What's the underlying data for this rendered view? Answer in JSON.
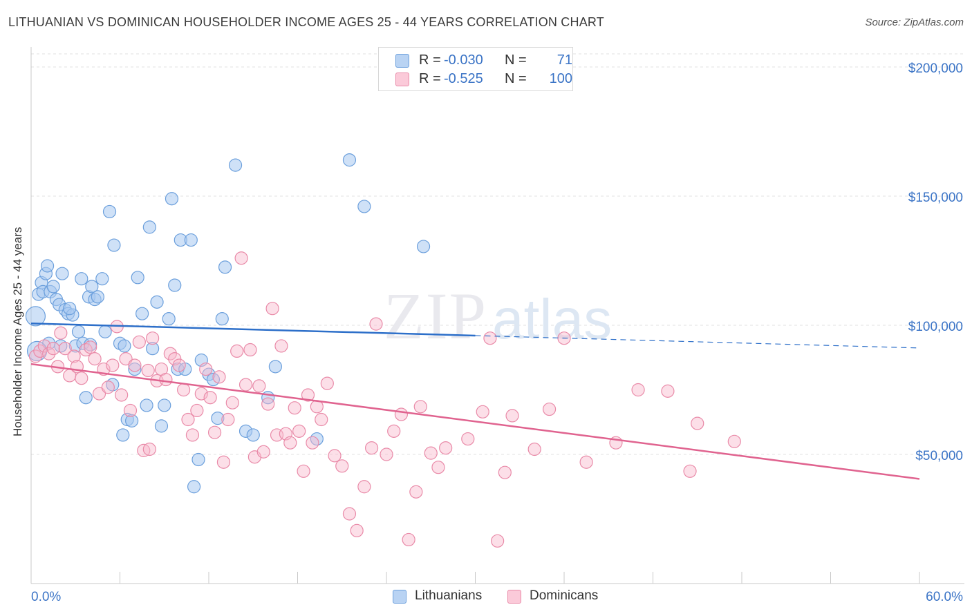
{
  "header": {
    "title": "LITHUANIAN VS DOMINICAN HOUSEHOLDER INCOME AGES 25 - 44 YEARS CORRELATION CHART",
    "source": "Source: ZipAtlas.com"
  },
  "watermark": {
    "zip": "ZIP",
    "atlas": "atlas"
  },
  "legend": {
    "rows": [
      {
        "r_label": "R =",
        "r_value": "-0.030",
        "n_label": "N =",
        "n_value": "71",
        "color": "#a8c8f0"
      },
      {
        "r_label": "R =",
        "r_value": "-0.525",
        "n_label": "N =",
        "n_value": "100",
        "color": "#f8b8cc"
      }
    ]
  },
  "bottom_legend": {
    "items": [
      {
        "label": "Lithuanians",
        "color": "#a8c8f0"
      },
      {
        "label": "Dominicans",
        "color": "#f8b8cc"
      }
    ]
  },
  "chart_data": {
    "type": "scatter",
    "title": "LITHUANIAN VS DOMINICAN HOUSEHOLDER INCOME AGES 25 - 44 YEARS CORRELATION CHART",
    "xlabel": "",
    "ylabel": "Householder Income Ages 25 - 44 years",
    "xlim": [
      0,
      60
    ],
    "ylim": [
      0,
      210000
    ],
    "x_tick_labels": [
      "0.0%",
      "60.0%"
    ],
    "y_ticks": [
      50000,
      100000,
      150000,
      200000
    ],
    "y_tick_labels": [
      "$50,000",
      "$100,000",
      "$150,000",
      "$200,000"
    ],
    "grid": true,
    "accent": {
      "blue": "#3b74c6",
      "blue_line": "#2d6fc9",
      "pink_line": "#e0638f"
    },
    "series": [
      {
        "name": "Lithuanians",
        "color": "#a8c8f0",
        "stroke": "#6b9fdc",
        "trend": {
          "x": [
            0,
            30
          ],
          "y": [
            100700,
            96000
          ]
        },
        "trend_dashed": {
          "x": [
            30,
            60
          ],
          "y": [
            96000,
            91200
          ]
        },
        "points": [
          [
            0.3,
            103500
          ],
          [
            0.5,
            112000
          ],
          [
            0.7,
            116500
          ],
          [
            0.8,
            113000
          ],
          [
            1.0,
            120000
          ],
          [
            1.1,
            123000
          ],
          [
            1.3,
            113000
          ],
          [
            1.5,
            115000
          ],
          [
            1.7,
            110000
          ],
          [
            1.9,
            108000
          ],
          [
            2.1,
            120000
          ],
          [
            2.3,
            106000
          ],
          [
            2.5,
            104500
          ],
          [
            2.8,
            104000
          ],
          [
            3.0,
            92000
          ],
          [
            3.2,
            97500
          ],
          [
            3.5,
            93000
          ],
          [
            3.4,
            118000
          ],
          [
            3.7,
            72000
          ],
          [
            3.9,
            111000
          ],
          [
            4.1,
            115000
          ],
          [
            4.3,
            110000
          ],
          [
            4.5,
            111000
          ],
          [
            4.8,
            118000
          ],
          [
            5.0,
            97500
          ],
          [
            5.3,
            144000
          ],
          [
            5.6,
            131000
          ],
          [
            5.5,
            77000
          ],
          [
            6.0,
            93000
          ],
          [
            6.3,
            92000
          ],
          [
            6.5,
            63500
          ],
          [
            6.8,
            63000
          ],
          [
            7.0,
            83000
          ],
          [
            7.2,
            118500
          ],
          [
            7.5,
            104500
          ],
          [
            7.8,
            69000
          ],
          [
            8.0,
            138000
          ],
          [
            8.2,
            91000
          ],
          [
            8.5,
            109000
          ],
          [
            8.8,
            61000
          ],
          [
            9.0,
            69000
          ],
          [
            9.3,
            102500
          ],
          [
            9.5,
            149000
          ],
          [
            9.7,
            115500
          ],
          [
            9.9,
            83000
          ],
          [
            10.1,
            133000
          ],
          [
            10.4,
            83000
          ],
          [
            10.8,
            133000
          ],
          [
            11.0,
            37500
          ],
          [
            11.3,
            48000
          ],
          [
            11.5,
            86500
          ],
          [
            12.0,
            81000
          ],
          [
            12.3,
            79000
          ],
          [
            12.6,
            64000
          ],
          [
            12.9,
            102500
          ],
          [
            13.1,
            122500
          ],
          [
            13.8,
            162000
          ],
          [
            14.5,
            59000
          ],
          [
            15.0,
            57500
          ],
          [
            16.0,
            72000
          ],
          [
            16.5,
            84000
          ],
          [
            19.3,
            56000
          ],
          [
            21.5,
            164000
          ],
          [
            22.5,
            146000
          ],
          [
            26.5,
            130500
          ],
          [
            1.2,
            93000
          ],
          [
            2.0,
            92000
          ],
          [
            4.0,
            92500
          ],
          [
            6.2,
            57500
          ],
          [
            2.6,
            106500
          ],
          [
            0.4,
            90000
          ]
        ]
      },
      {
        "name": "Dominicans",
        "color": "#f8b8cc",
        "stroke": "#e98aa8",
        "trend": {
          "x": [
            0,
            60
          ],
          "y": [
            85000,
            40500
          ]
        },
        "points": [
          [
            0.3,
            88000
          ],
          [
            0.6,
            90000
          ],
          [
            0.9,
            92000
          ],
          [
            1.2,
            89000
          ],
          [
            1.5,
            91000
          ],
          [
            1.8,
            84000
          ],
          [
            2.0,
            97000
          ],
          [
            2.3,
            91000
          ],
          [
            2.6,
            80500
          ],
          [
            2.9,
            88000
          ],
          [
            3.1,
            84000
          ],
          [
            3.4,
            79500
          ],
          [
            3.7,
            90500
          ],
          [
            4.0,
            91500
          ],
          [
            4.3,
            87000
          ],
          [
            4.6,
            73500
          ],
          [
            4.9,
            83000
          ],
          [
            5.2,
            76000
          ],
          [
            5.5,
            84500
          ],
          [
            5.8,
            99500
          ],
          [
            6.1,
            73000
          ],
          [
            6.4,
            87000
          ],
          [
            6.7,
            67000
          ],
          [
            7.0,
            84500
          ],
          [
            7.3,
            93500
          ],
          [
            7.6,
            51500
          ],
          [
            7.9,
            82500
          ],
          [
            8.2,
            95000
          ],
          [
            8.5,
            78500
          ],
          [
            8.8,
            83000
          ],
          [
            9.1,
            79000
          ],
          [
            9.4,
            89000
          ],
          [
            9.7,
            87000
          ],
          [
            10.0,
            84500
          ],
          [
            10.3,
            75000
          ],
          [
            10.6,
            63500
          ],
          [
            10.9,
            57500
          ],
          [
            11.2,
            67000
          ],
          [
            11.5,
            73500
          ],
          [
            11.8,
            83000
          ],
          [
            12.1,
            72000
          ],
          [
            12.4,
            58500
          ],
          [
            12.7,
            80000
          ],
          [
            13.0,
            47000
          ],
          [
            13.3,
            63500
          ],
          [
            13.6,
            70000
          ],
          [
            13.9,
            90000
          ],
          [
            14.2,
            126000
          ],
          [
            14.5,
            77000
          ],
          [
            14.8,
            90500
          ],
          [
            15.1,
            49000
          ],
          [
            15.4,
            76500
          ],
          [
            15.7,
            51000
          ],
          [
            16.0,
            69500
          ],
          [
            16.3,
            106500
          ],
          [
            16.6,
            57500
          ],
          [
            16.9,
            92000
          ],
          [
            17.2,
            58000
          ],
          [
            17.5,
            54500
          ],
          [
            17.8,
            68000
          ],
          [
            18.1,
            59000
          ],
          [
            18.4,
            43500
          ],
          [
            18.7,
            73000
          ],
          [
            19.0,
            54500
          ],
          [
            19.3,
            68500
          ],
          [
            19.6,
            63500
          ],
          [
            20.0,
            77500
          ],
          [
            20.5,
            49500
          ],
          [
            21.0,
            45500
          ],
          [
            21.5,
            27000
          ],
          [
            22.0,
            20500
          ],
          [
            22.5,
            37500
          ],
          [
            23.0,
            52500
          ],
          [
            23.3,
            100500
          ],
          [
            24.0,
            50000
          ],
          [
            24.5,
            59000
          ],
          [
            25.0,
            65500
          ],
          [
            25.5,
            17000
          ],
          [
            26.0,
            35500
          ],
          [
            26.3,
            68500
          ],
          [
            27.0,
            50500
          ],
          [
            27.5,
            45000
          ],
          [
            28.0,
            52500
          ],
          [
            29.5,
            56000
          ],
          [
            30.5,
            66500
          ],
          [
            31.0,
            95000
          ],
          [
            32.0,
            43000
          ],
          [
            32.5,
            65000
          ],
          [
            34.0,
            52000
          ],
          [
            35.0,
            67500
          ],
          [
            36.0,
            95000
          ],
          [
            37.5,
            47000
          ],
          [
            39.5,
            54500
          ],
          [
            41.0,
            75000
          ],
          [
            43.0,
            74500
          ],
          [
            44.5,
            43500
          ],
          [
            45.0,
            62000
          ],
          [
            47.5,
            55000
          ],
          [
            31.5,
            16500
          ],
          [
            8.0,
            52000
          ]
        ]
      }
    ]
  }
}
